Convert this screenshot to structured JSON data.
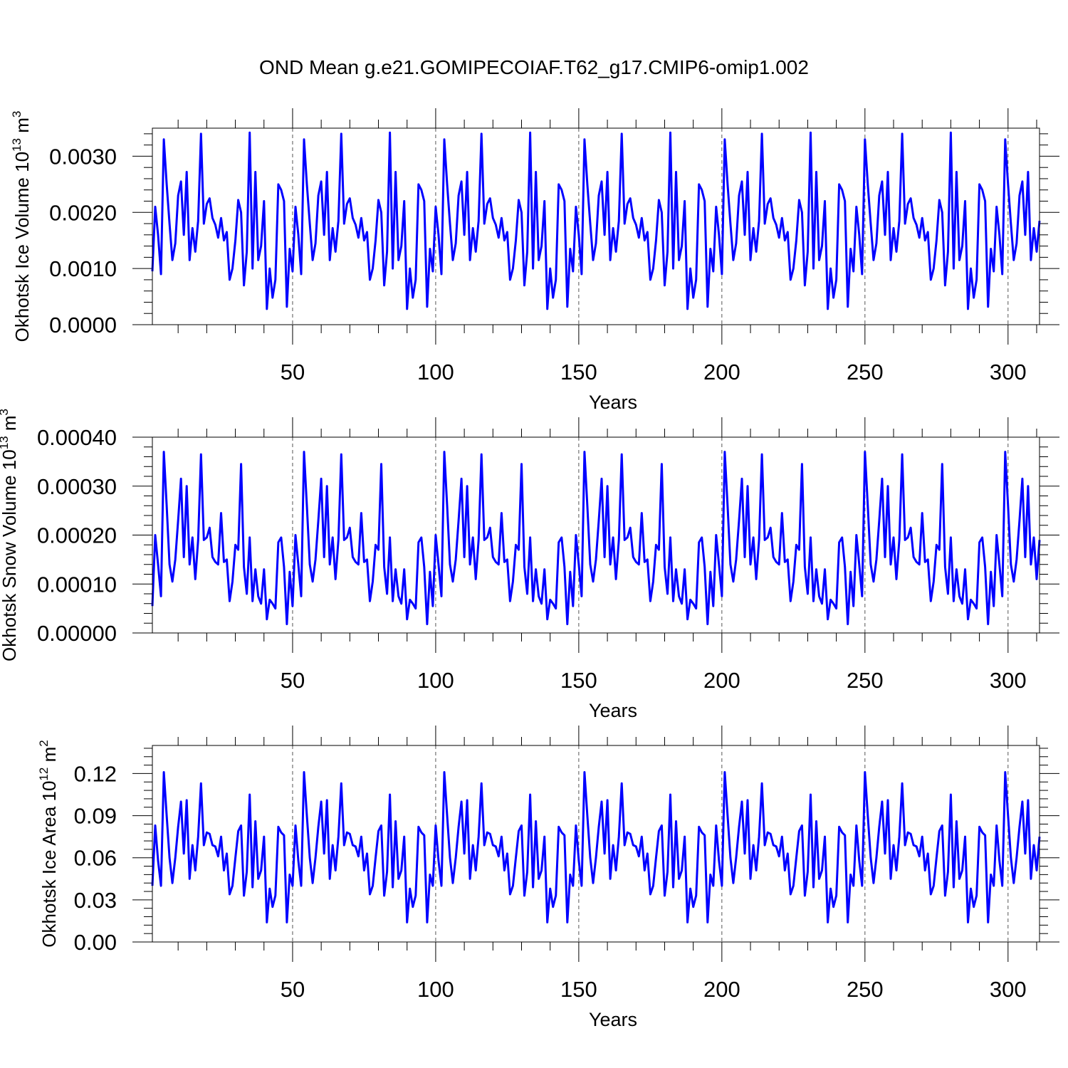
{
  "title": "OND Mean g.e21.GOMIPECOIAF.T62_g17.CMIP6-omip1.002",
  "line_color": "#0000ff",
  "chart_data": [
    {
      "type": "line",
      "ylabel_main": "Okhotsk Ice Volume 10",
      "ylabel_exp": "13",
      "ylabel_unit": "m",
      "ylabel_unit_exp": "3",
      "xlabel": "Years",
      "xlim": [
        1,
        311
      ],
      "ylim": [
        0,
        0.0035
      ],
      "yticks": [
        0,
        0.001,
        0.002,
        0.003
      ],
      "ytick_labels": [
        "0.0000",
        "0.0010",
        "0.0020",
        "0.0030"
      ],
      "xticks": [
        50,
        100,
        150,
        200,
        250,
        300
      ],
      "xtick_labels": [
        "50",
        "100",
        "150",
        "200",
        "250",
        "300"
      ],
      "gridlines_x": [
        50,
        100,
        150,
        200,
        250,
        300
      ],
      "pattern": [
        0.00095,
        0.0021,
        0.0016,
        0.0009,
        0.0033,
        0.0025,
        0.0018,
        0.00115,
        0.00145,
        0.0023,
        0.00255,
        0.0016,
        0.00272,
        0.00115,
        0.00172,
        0.0013,
        0.00185,
        0.0034,
        0.0018,
        0.00215,
        0.00225,
        0.0019,
        0.00178,
        0.00155,
        0.0019,
        0.0015,
        0.00165,
        0.0008,
        0.001,
        0.0015,
        0.00222,
        0.002,
        0.0007,
        0.0013,
        0.00342,
        0.001,
        0.00272,
        0.00115,
        0.0014,
        0.0022,
        0.00028,
        0.001,
        0.00048,
        0.0008,
        0.0025,
        0.0024,
        0.0022,
        0.00032,
        0.00135
      ],
      "series": [
        {
          "name": "Okhotsk Ice Volume",
          "values": []
        }
      ]
    },
    {
      "type": "line",
      "ylabel_main": "Okhotsk Snow Volume 10",
      "ylabel_exp": "13",
      "ylabel_unit": "m",
      "ylabel_unit_exp": "3",
      "xlabel": "Years",
      "xlim": [
        1,
        311
      ],
      "ylim": [
        0,
        0.0004
      ],
      "yticks": [
        0,
        0.0001,
        0.0002,
        0.0003,
        0.0004
      ],
      "ytick_labels": [
        "0.00000",
        "0.00010",
        "0.00020",
        "0.00030",
        "0.00040"
      ],
      "xticks": [
        50,
        100,
        150,
        200,
        250,
        300
      ],
      "xtick_labels": [
        "50",
        "100",
        "150",
        "200",
        "250",
        "300"
      ],
      "gridlines_x": [
        50,
        100,
        150,
        200,
        250,
        300
      ],
      "pattern": [
        5.5e-05,
        0.0002,
        0.00014,
        7.5e-05,
        0.00037,
        0.00026,
        0.00014,
        0.000105,
        0.00015,
        0.00023,
        0.000315,
        0.000155,
        0.0003,
        0.00014,
        0.000195,
        0.00011,
        0.00019,
        0.000365,
        0.00019,
        0.000195,
        0.000215,
        0.000155,
        0.000145,
        0.00014,
        0.000245,
        0.000145,
        0.00015,
        6.5e-05,
        0.000105,
        0.00018,
        0.00017,
        0.000345,
        0.000135,
        8e-05,
        0.000195,
        6.5e-05,
        0.00013,
        7.5e-05,
        6e-05,
        0.00013,
        2.8e-05,
        6.8e-05,
        6e-05,
        5e-05,
        0.000185,
        0.000195,
        0.000135,
        1.8e-05,
        0.000125
      ],
      "series": [
        {
          "name": "Okhotsk Snow Volume",
          "values": []
        }
      ]
    },
    {
      "type": "line",
      "ylabel_main": "Okhotsk Ice Area 10",
      "ylabel_exp": "12",
      "ylabel_unit": "m",
      "ylabel_unit_exp": "2",
      "xlabel": "Years",
      "xlim": [
        1,
        311
      ],
      "ylim": [
        0,
        0.14
      ],
      "yticks": [
        0,
        0.03,
        0.06,
        0.09,
        0.12
      ],
      "ytick_labels": [
        "0.00",
        "0.03",
        "0.06",
        "0.09",
        "0.12"
      ],
      "xticks": [
        50,
        100,
        150,
        200,
        250,
        300
      ],
      "xtick_labels": [
        "50",
        "100",
        "150",
        "200",
        "250",
        "300"
      ],
      "gridlines_x": [
        50,
        100,
        150,
        200,
        250,
        300
      ],
      "pattern": [
        0.04,
        0.083,
        0.058,
        0.04,
        0.121,
        0.09,
        0.06,
        0.042,
        0.06,
        0.082,
        0.1,
        0.063,
        0.101,
        0.045,
        0.069,
        0.051,
        0.075,
        0.113,
        0.069,
        0.078,
        0.077,
        0.069,
        0.068,
        0.061,
        0.075,
        0.051,
        0.063,
        0.034,
        0.04,
        0.06,
        0.079,
        0.083,
        0.033,
        0.05,
        0.105,
        0.039,
        0.086,
        0.045,
        0.051,
        0.075,
        0.014,
        0.038,
        0.025,
        0.033,
        0.082,
        0.078,
        0.076,
        0.014,
        0.048
      ],
      "series": [
        {
          "name": "Okhotsk Ice Area",
          "values": []
        }
      ]
    }
  ]
}
